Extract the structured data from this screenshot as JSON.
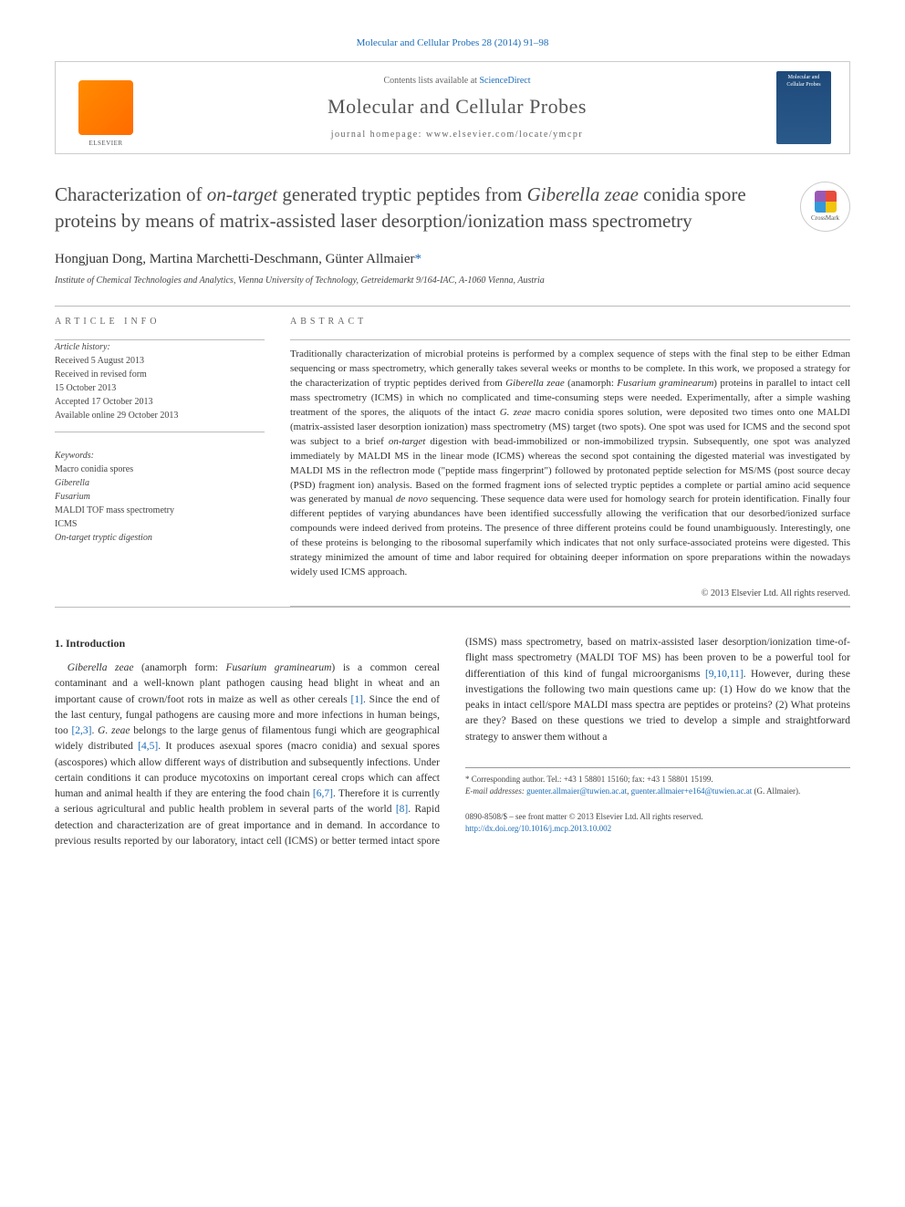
{
  "header": {
    "journal_ref_prefix": "Molecular and Cellular Probes 28 (2014) 91–98",
    "journal_link_text": "Molecular and Cellular Probes"
  },
  "banner": {
    "contents_prefix": "Contents lists available at ",
    "contents_link": "ScienceDirect",
    "journal_name": "Molecular and Cellular Probes",
    "homepage_prefix": "journal homepage: ",
    "homepage_url": "www.elsevier.com/locate/ymcpr",
    "cover_title": "Molecular and Cellular Probes"
  },
  "crossmark": {
    "label": "CrossMark"
  },
  "article": {
    "title_html": "Characterization of <em>on-target</em> generated tryptic peptides from <em>Giberella zeae</em> conidia spore proteins by means of matrix-assisted laser desorption/ionization mass spectrometry",
    "authors_html": "Hongjuan Dong, Martina Marchetti-Deschmann, Günter Allmaier<span class='corr'>*</span>",
    "affiliation": "Institute of Chemical Technologies and Analytics, Vienna University of Technology, Getreidemarkt 9/164-IAC, A-1060 Vienna, Austria"
  },
  "info": {
    "article_info_hdr": "ARTICLE INFO",
    "abstract_hdr": "ABSTRACT",
    "history_title": "Article history:",
    "history_lines": [
      "Received 5 August 2013",
      "Received in revised form",
      "15 October 2013",
      "Accepted 17 October 2013",
      "Available online 29 October 2013"
    ],
    "keywords_title": "Keywords:",
    "keywords": [
      "Macro conidia spores",
      "Giberella",
      "Fusarium",
      "MALDI TOF mass spectrometry",
      "ICMS",
      "On-target tryptic digestion"
    ]
  },
  "abstract": {
    "text_html": "Traditionally characterization of microbial proteins is performed by a complex sequence of steps with the final step to be either Edman sequencing or mass spectrometry, which generally takes several weeks or months to be complete. In this work, we proposed a strategy for the characterization of tryptic peptides derived from <em>Giberella zeae</em> (anamorph: <em>Fusarium graminearum</em>) proteins in parallel to intact cell mass spectrometry (ICMS) in which no complicated and time-consuming steps were needed. Experimentally, after a simple washing treatment of the spores, the aliquots of the intact <em>G. zeae</em> macro conidia spores solution, were deposited two times onto one MALDI (matrix-assisted laser desorption ionization) mass spectrometry (MS) target (two spots). One spot was used for ICMS and the second spot was subject to a brief <em>on-target</em> digestion with bead-immobilized or non-immobilized trypsin. Subsequently, one spot was analyzed immediately by MALDI MS in the linear mode (ICMS) whereas the second spot containing the digested material was investigated by MALDI MS in the reflectron mode (\"peptide mass fingerprint\") followed by protonated peptide selection for MS/MS (post source decay (PSD) fragment ion) analysis. Based on the formed fragment ions of selected tryptic peptides a complete or partial amino acid sequence was generated by manual <em>de novo</em> sequencing. These sequence data were used for homology search for protein identification. Finally four different peptides of varying abundances have been identified successfully allowing the verification that our desorbed/ionized surface compounds were indeed derived from proteins. The presence of three different proteins could be found unambiguously. Interestingly, one of these proteins is belonging to the ribosomal superfamily which indicates that not only surface-associated proteins were digested. This strategy minimized the amount of time and labor required for obtaining deeper information on spore preparations within the nowadays widely used ICMS approach.",
    "copyright": "© 2013 Elsevier Ltd. All rights reserved."
  },
  "body": {
    "section_number": "1.",
    "section_title": "Introduction",
    "para_html": "<em>Giberella zeae</em> (anamorph form: <em>Fusarium graminearum</em>) is a common cereal contaminant and a well-known plant pathogen causing head blight in wheat and an important cause of crown/foot rots in maize as well as other cereals <a>[1]</a>. Since the end of the last century, fungal pathogens are causing more and more infections in human beings, too <a>[2,3]</a>. <em>G. zeae</em> belongs to the large genus of filamentous fungi which are geographical widely distributed <a>[4,5]</a>. It produces asexual spores (macro conidia) and sexual spores (ascospores) which allow different ways of distribution and subsequently infections. Under certain conditions it can produce mycotoxins on important cereal crops which can affect human and animal health if they are entering the food chain <a>[6,7]</a>. Therefore it is currently a serious agricultural and public health problem in several parts of the world <a>[8]</a>. Rapid detection and characterization are of great importance and in demand. In accordance to previous results reported by our laboratory, intact cell (ICMS) or better termed intact spore (ISMS) mass spectrometry, based on matrix-assisted laser desorption/ionization time-of-flight mass spectrometry (MALDI TOF MS) has been proven to be a powerful tool for differentiation of this kind of fungal microorganisms <a>[9,10,11]</a>. However, during these investigations the following two main questions came up: (1) How do we know that the peaks in intact cell/spore MALDI mass spectra are peptides or proteins? (2) What proteins are they? Based on these questions we tried to develop a simple and straightforward strategy to answer them without a"
  },
  "footer": {
    "corr_label": "* Corresponding author. Tel.: +43 1 58801 15160; fax: +43 1 58801 15199.",
    "email_label": "E-mail addresses:",
    "email1": "guenter.allmaier@tuwien.ac.at",
    "email2": "guenter.allmaier+e164@tuwien.ac.at",
    "email_suffix": "(G. Allmaier).",
    "issn_line": "0890-8508/$ – see front matter © 2013 Elsevier Ltd. All rights reserved.",
    "doi": "http://dx.doi.org/10.1016/j.mcp.2013.10.002"
  },
  "colors": {
    "link": "#1a6bb8",
    "text": "#333333",
    "border": "#bbbbbb"
  }
}
